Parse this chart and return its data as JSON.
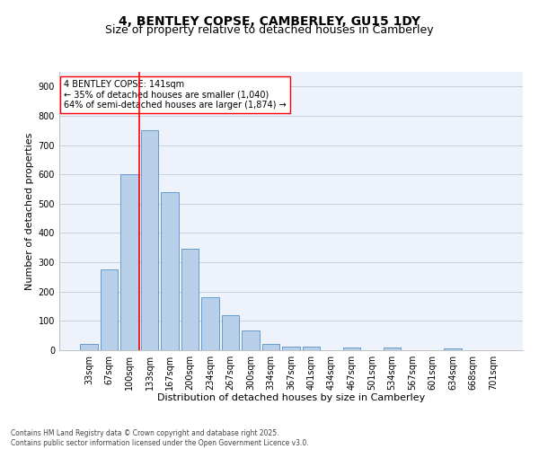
{
  "title_line1": "4, BENTLEY COPSE, CAMBERLEY, GU15 1DY",
  "title_line2": "Size of property relative to detached houses in Camberley",
  "xlabel": "Distribution of detached houses by size in Camberley",
  "ylabel": "Number of detached properties",
  "categories": [
    "33sqm",
    "67sqm",
    "100sqm",
    "133sqm",
    "167sqm",
    "200sqm",
    "234sqm",
    "267sqm",
    "300sqm",
    "334sqm",
    "367sqm",
    "401sqm",
    "434sqm",
    "467sqm",
    "501sqm",
    "534sqm",
    "567sqm",
    "601sqm",
    "634sqm",
    "668sqm",
    "701sqm"
  ],
  "values": [
    20,
    275,
    600,
    750,
    540,
    345,
    180,
    120,
    68,
    22,
    12,
    11,
    0,
    10,
    0,
    8,
    0,
    0,
    5,
    0,
    0
  ],
  "bar_color": "#b8d0ea",
  "bar_edge_color": "#6699cc",
  "vline_index": 3,
  "vline_color": "red",
  "annotation_text": "4 BENTLEY COPSE: 141sqm\n← 35% of detached houses are smaller (1,040)\n64% of semi-detached houses are larger (1,874) →",
  "annotation_box_color": "white",
  "annotation_box_edge": "red",
  "ylim": [
    0,
    950
  ],
  "yticks": [
    0,
    100,
    200,
    300,
    400,
    500,
    600,
    700,
    800,
    900
  ],
  "background_color": "#eef2fb",
  "grid_color": "#c8cfe0",
  "footer_line1": "Contains HM Land Registry data © Crown copyright and database right 2025.",
  "footer_line2": "Contains public sector information licensed under the Open Government Licence v3.0.",
  "title_fontsize": 10,
  "subtitle_fontsize": 9,
  "ylabel_fontsize": 8,
  "xlabel_fontsize": 8,
  "tick_fontsize": 7,
  "annotation_fontsize": 7,
  "footer_fontsize": 5.5
}
